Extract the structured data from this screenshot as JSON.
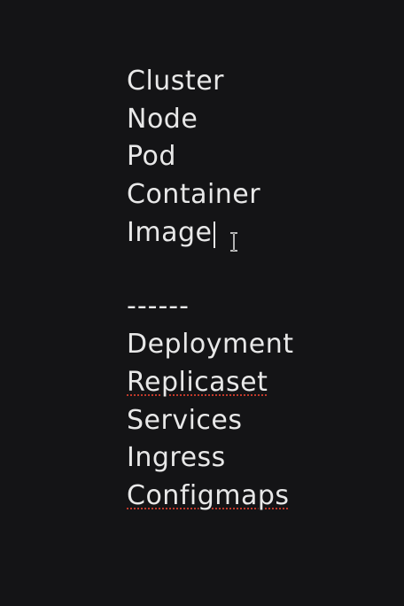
{
  "lines": [
    {
      "text": "Cluster",
      "spellcheck": false
    },
    {
      "text": "Node",
      "spellcheck": false
    },
    {
      "text": "Pod",
      "spellcheck": false
    },
    {
      "text": "Container",
      "spellcheck": false
    },
    {
      "text": "Image",
      "spellcheck": false
    },
    {
      "text": "------",
      "spellcheck": false
    },
    {
      "text": "Deployment",
      "spellcheck": false
    },
    {
      "text": "Replicaset",
      "spellcheck": true
    },
    {
      "text": "Services",
      "spellcheck": false
    },
    {
      "text": "Ingress",
      "spellcheck": false
    },
    {
      "text": "Configmaps",
      "spellcheck": true
    }
  ],
  "colors": {
    "background": "#141416",
    "text": "#e8e8e8",
    "spellcheck_underline": "#c0392b"
  },
  "icons": {
    "cursor": "i-beam-cursor-icon"
  }
}
